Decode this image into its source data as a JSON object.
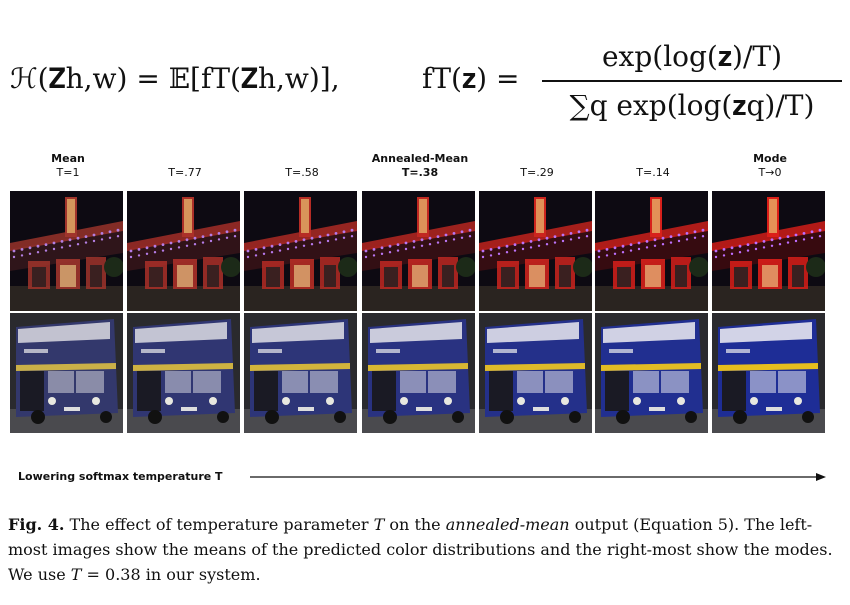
{
  "equation": {
    "lhs": "ℋ(𝐙h,w) = 𝔼[fT(𝐙h,w)],",
    "f_lhs": "fT(𝐳) =",
    "numerator": "exp(log(𝐳)/T)",
    "denominator": "∑q exp(log(𝐳q)/T)"
  },
  "columns": [
    {
      "heading": "Mean",
      "temp": "T=1"
    },
    {
      "heading": "",
      "temp": "T=.77"
    },
    {
      "heading": "",
      "temp": "T=.58"
    },
    {
      "heading": "",
      "temp": "T=.38"
    },
    {
      "heading": "",
      "temp": "T=.29"
    },
    {
      "heading": "",
      "temp": "T=.14"
    },
    {
      "heading": "Mode",
      "temp": "T→0"
    }
  ],
  "annealed_heading": "Annealed-Mean",
  "arrow_label": "Lowering softmax temperature T",
  "caption": {
    "fig_label": "Fig. 4.",
    "part1": " The effect of temperature parameter ",
    "T1": "T",
    "part2": " on the ",
    "emph": "annealed-mean",
    "part3": " output (Equation 5). The left-most images show the means of the predicted color distributions and the right-most show the modes. We use ",
    "T2": "T",
    "part4": " = 0.38 in our system."
  },
  "colors": {
    "theater_saturation": [
      0.45,
      0.55,
      0.65,
      0.75,
      0.85,
      0.95,
      1.0
    ],
    "bus_saturation": [
      0.3,
      0.4,
      0.5,
      0.65,
      0.8,
      0.9,
      1.0
    ]
  }
}
